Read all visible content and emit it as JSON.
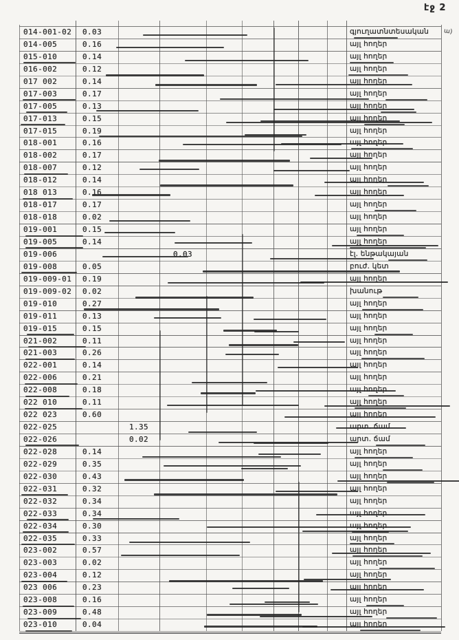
{
  "page": {
    "header": "էջ 2",
    "margin_note": "ա)"
  },
  "table": {
    "columns": [
      "code",
      "main",
      "col3",
      "col4",
      "use"
    ],
    "rows": [
      {
        "code": "014-001-02",
        "main": "0.03",
        "col3": "",
        "col4": "",
        "use": "գյուղատնտեսական"
      },
      {
        "code": "014-005",
        "main": "0.16",
        "col3": "",
        "col4": "",
        "use": "այլ հողեր"
      },
      {
        "code": "015-010",
        "main": "0.14",
        "col3": "",
        "col4": "",
        "use": "այլ հողեր"
      },
      {
        "code": "016-002",
        "main": "0.12",
        "col3": "",
        "col4": "",
        "use": "այլ հողեր"
      },
      {
        "code": "017 002",
        "main": "0.14",
        "col3": "",
        "col4": "",
        "use": "այլ հողեր"
      },
      {
        "code": "017-003",
        "main": "0.17",
        "col3": "",
        "col4": "",
        "use": "այլ հողեր"
      },
      {
        "code": "017-005",
        "main": "0.13",
        "col3": "",
        "col4": "",
        "use": "այլ հողեր"
      },
      {
        "code": "017-013",
        "main": "0.15",
        "col3": "",
        "col4": "",
        "use": "այլ հողեր"
      },
      {
        "code": "017-015",
        "main": "0.19",
        "col3": "",
        "col4": "",
        "use": "այլ հողեր"
      },
      {
        "code": "018-001",
        "main": "0.16",
        "col3": "",
        "col4": "",
        "use": "այլ հողեր"
      },
      {
        "code": "018-002",
        "main": "0.17",
        "col3": "",
        "col4": "",
        "use": "այլ հողեր"
      },
      {
        "code": "018-007",
        "main": "0.12",
        "col3": "",
        "col4": "",
        "use": "այլ հողեր"
      },
      {
        "code": "018-012",
        "main": "0.14",
        "col3": "",
        "col4": "",
        "use": "այլ հողեր"
      },
      {
        "code": "018 013",
        "main": "0.16",
        "col3": "",
        "col4": "",
        "use": "այլ հողեր"
      },
      {
        "code": "018-017",
        "main": "0.17",
        "col3": "",
        "col4": "",
        "use": "այլ հողեր"
      },
      {
        "code": "018-018",
        "main": "0.02",
        "col3": "",
        "col4": "",
        "use": "այլ հողեր"
      },
      {
        "code": "019-001",
        "main": "0.15",
        "col3": "",
        "col4": "",
        "use": "այլ հողեր"
      },
      {
        "code": "019-005",
        "main": "0.14",
        "col3": "",
        "col4": "",
        "use": "այլ հողեր"
      },
      {
        "code": "019-006",
        "main": "",
        "col3": "",
        "col4": "0.03",
        "use": "էլ. ենթակայան"
      },
      {
        "code": "019-008",
        "main": "0.05",
        "col3": "",
        "col4": "",
        "use": "բուժ. կետ"
      },
      {
        "code": "019-009-01",
        "main": "0.19",
        "col3": "",
        "col4": "",
        "use": "այլ հողեր"
      },
      {
        "code": "019-009-02",
        "main": "0.02",
        "col3": "",
        "col4": "",
        "use": "խանութ"
      },
      {
        "code": "019-010",
        "main": "0.27",
        "col3": "",
        "col4": "",
        "use": "այլ հողեր"
      },
      {
        "code": "019-011",
        "main": "0.13",
        "col3": "",
        "col4": "",
        "use": "այլ հողեր"
      },
      {
        "code": "019-015",
        "main": "0.15",
        "col3": "",
        "col4": "",
        "use": "այլ հողեր"
      },
      {
        "code": "021-002",
        "main": "0.11",
        "col3": "",
        "col4": "",
        "use": "այլ հողեր"
      },
      {
        "code": "021-003",
        "main": "0.26",
        "col3": "",
        "col4": "",
        "use": "այլ հողեր"
      },
      {
        "code": "022-001",
        "main": "0.14",
        "col3": "",
        "col4": "",
        "use": "այլ հողեր"
      },
      {
        "code": "022-006",
        "main": "0.21",
        "col3": "",
        "col4": "",
        "use": "այլ հողեր"
      },
      {
        "code": "022-008",
        "main": "0.18",
        "col3": "",
        "col4": "",
        "use": "այլ հողեր"
      },
      {
        "code": "022 010",
        "main": "0.11",
        "col3": "",
        "col4": "",
        "use": "այլ հողեր"
      },
      {
        "code": "022 023",
        "main": "0.60",
        "col3": "",
        "col4": "",
        "use": "այլ հողեր"
      },
      {
        "code": "022-025",
        "main": "",
        "col3": "1.35",
        "col4": "",
        "use": "արտ. ճամ"
      },
      {
        "code": "022-026",
        "main": "",
        "col3": "0.02",
        "col4": "",
        "use": "արտ. ճամ"
      },
      {
        "code": "022-028",
        "main": "0.14",
        "col3": "",
        "col4": "",
        "use": "այլ հողեր"
      },
      {
        "code": "022-029",
        "main": "0.35",
        "col3": "",
        "col4": "",
        "use": "այլ հողեր"
      },
      {
        "code": "022-030",
        "main": "0.43",
        "col3": "",
        "col4": "",
        "use": "այլ հողեր"
      },
      {
        "code": "022-031",
        "main": "0.32",
        "col3": "",
        "col4": "",
        "use": "այլ հողեր"
      },
      {
        "code": "022-032",
        "main": "0.34",
        "col3": "",
        "col4": "",
        "use": "այլ հողեր"
      },
      {
        "code": "022-033",
        "main": "0.34",
        "col3": "",
        "col4": "",
        "use": "այլ հողեր"
      },
      {
        "code": "022-034",
        "main": "0.30",
        "col3": "",
        "col4": "",
        "use": "այլ հողեր"
      },
      {
        "code": "022-035",
        "main": "0.33",
        "col3": "",
        "col4": "",
        "use": "այլ հողեր"
      },
      {
        "code": "023-002",
        "main": "0.57",
        "col3": "",
        "col4": "",
        "use": "այլ հողեր"
      },
      {
        "code": "023-003",
        "main": "0.02",
        "col3": "",
        "col4": "",
        "use": "այլ հողեր"
      },
      {
        "code": "023-004",
        "main": "0.12",
        "col3": "",
        "col4": "",
        "use": "այլ հողեր"
      },
      {
        "code": "023 006",
        "main": "0.23",
        "col3": "",
        "col4": "",
        "use": "այլ հողեր"
      },
      {
        "code": "023-008",
        "main": "0.16",
        "col3": "",
        "col4": "",
        "use": "այլ հողեր"
      },
      {
        "code": "023-009",
        "main": "0.48",
        "col3": "",
        "col4": "",
        "use": "այլ հողեր"
      },
      {
        "code": "023-010",
        "main": "0.04",
        "col3": "",
        "col4": "",
        "use": "այլ հողեր"
      }
    ]
  }
}
